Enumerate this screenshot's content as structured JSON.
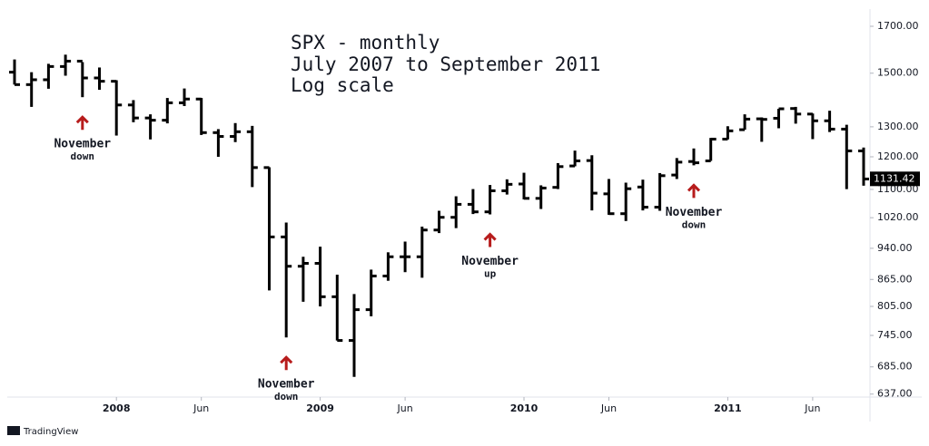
{
  "chart_data": {
    "type": "ohlc",
    "title": [
      "SPX - monthly",
      "July 2007 to September 2011",
      "Log scale"
    ],
    "log_scale": true,
    "grid": false,
    "color": "#000000",
    "annotation_color": "#b71c1c",
    "categories": [
      "2007-07",
      "2007-08",
      "2007-09",
      "2007-10",
      "2007-11",
      "2007-12",
      "2008-01",
      "2008-02",
      "2008-03",
      "2008-04",
      "2008-05",
      "2008-06",
      "2008-07",
      "2008-08",
      "2008-09",
      "2008-10",
      "2008-11",
      "2008-12",
      "2009-01",
      "2009-02",
      "2009-03",
      "2009-04",
      "2009-05",
      "2009-06",
      "2009-07",
      "2009-08",
      "2009-09",
      "2009-10",
      "2009-11",
      "2009-12",
      "2010-01",
      "2010-02",
      "2010-03",
      "2010-04",
      "2010-05",
      "2010-06",
      "2010-07",
      "2010-08",
      "2010-09",
      "2010-10",
      "2010-11",
      "2010-12",
      "2011-01",
      "2011-02",
      "2011-03",
      "2011-04",
      "2011-05",
      "2011-06",
      "2011-07",
      "2011-08",
      "2011-09"
    ],
    "open": [
      1504,
      1455,
      1474,
      1527,
      1549,
      1481,
      1468,
      1378,
      1331,
      1323,
      1386,
      1400,
      1280,
      1267,
      1283,
      1166,
      969,
      896,
      903,
      826,
      735,
      798,
      873,
      919,
      919,
      987,
      1021,
      1057,
      1036,
      1096,
      1116,
      1074,
      1106,
      1171,
      1188,
      1087,
      1031,
      1107,
      1049,
      1143,
      1185,
      1187,
      1258,
      1290,
      1328,
      1330,
      1365,
      1345,
      1321,
      1292,
      1219
    ],
    "high": [
      1556,
      1504,
      1538,
      1576,
      1545,
      1523,
      1472,
      1396,
      1344,
      1404,
      1440,
      1404,
      1292,
      1313,
      1303,
      1167,
      1007,
      919,
      944,
      876,
      832,
      888,
      930,
      957,
      996,
      1039,
      1080,
      1101,
      1113,
      1130,
      1150,
      1112,
      1180,
      1220,
      1205,
      1131,
      1120,
      1129,
      1149,
      1196,
      1227,
      1262,
      1302,
      1344,
      1333,
      1364,
      1371,
      1347,
      1357,
      1307,
      1230
    ],
    "low": [
      1455,
      1371,
      1439,
      1490,
      1407,
      1435,
      1270,
      1316,
      1257,
      1312,
      1374,
      1272,
      1200,
      1248,
      1107,
      840,
      741,
      815,
      805,
      735,
      667,
      784,
      862,
      882,
      869,
      979,
      992,
      1030,
      1029,
      1085,
      1071,
      1044,
      1101,
      1170,
      1040,
      1028,
      1011,
      1040,
      1039,
      1131,
      1173,
      1187,
      1257,
      1290,
      1249,
      1295,
      1311,
      1258,
      1282,
      1101,
      1111
    ],
    "close": [
      1455,
      1474,
      1527,
      1549,
      1481,
      1468,
      1378,
      1331,
      1323,
      1386,
      1400,
      1280,
      1267,
      1283,
      1166,
      969,
      896,
      903,
      826,
      735,
      798,
      873,
      919,
      919,
      987,
      1021,
      1057,
      1036,
      1096,
      1115,
      1074,
      1104,
      1169,
      1187,
      1089,
      1031,
      1102,
      1049,
      1141,
      1183,
      1181,
      1258,
      1286,
      1327,
      1326,
      1364,
      1345,
      1321,
      1292,
      1219,
      1131
    ],
    "ylim": [
      632,
      1780
    ],
    "yticks": [
      {
        "value": 637,
        "label": "637.00"
      },
      {
        "value": 685,
        "label": "685.00"
      },
      {
        "value": 745,
        "label": "745.00"
      },
      {
        "value": 805,
        "label": "805.00"
      },
      {
        "value": 865,
        "label": "865.00"
      },
      {
        "value": 940,
        "label": "940.00"
      },
      {
        "value": 1020,
        "label": "1020.00"
      },
      {
        "value": 1100,
        "label": "1100.00"
      },
      {
        "value": 1200,
        "label": "1200.00"
      },
      {
        "value": 1300,
        "label": "1300.00"
      },
      {
        "value": 1500,
        "label": "1500.00"
      },
      {
        "value": 1700,
        "label": "1700.00"
      }
    ],
    "xticks": [
      {
        "value": "2008-01",
        "label": "2008"
      },
      {
        "value": "2008-06",
        "label": "Jun"
      },
      {
        "value": "2009-01",
        "label": "2009"
      },
      {
        "value": "2009-06",
        "label": "Jun"
      },
      {
        "value": "2010-01",
        "label": "2010"
      },
      {
        "value": "2010-06",
        "label": "Jun"
      },
      {
        "value": "2011-01",
        "label": "2011"
      },
      {
        "value": "2011-06",
        "label": "Jun"
      }
    ],
    "last_price": {
      "value": 1131.42,
      "label": "1131.42"
    },
    "annotations": [
      {
        "category": "2007-11",
        "text": [
          "November",
          "down"
        ]
      },
      {
        "category": "2008-11",
        "text": [
          "November",
          "down"
        ]
      },
      {
        "category": "2009-11",
        "text": [
          "November",
          "up"
        ]
      },
      {
        "category": "2010-11",
        "text": [
          "November",
          "down"
        ]
      }
    ],
    "source": "TradingView"
  }
}
